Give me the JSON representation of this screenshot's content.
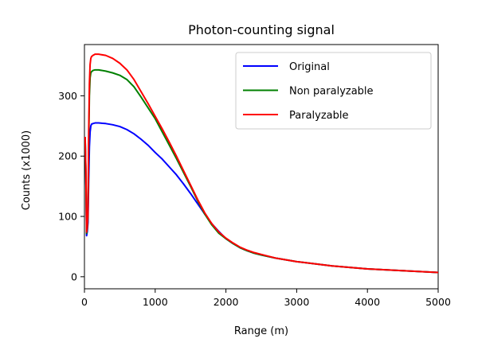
{
  "chart_data": {
    "type": "line",
    "title": "Photon-counting signal",
    "xlabel": "Range (m)",
    "ylabel": "Counts (x1000)",
    "xlim": [
      0,
      5000
    ],
    "ylim": [
      -20,
      385
    ],
    "xticks": [
      0,
      1000,
      2000,
      3000,
      4000,
      5000
    ],
    "yticks": [
      0,
      100,
      200,
      300
    ],
    "grid": false,
    "legend": "top-right",
    "series": [
      {
        "name": "Original",
        "color": "#0000ff",
        "x": [
          10,
          20,
          30,
          40,
          50,
          60,
          70,
          80,
          90,
          100,
          120,
          150,
          200,
          300,
          400,
          500,
          600,
          700,
          800,
          900,
          1000,
          1100,
          1200,
          1300,
          1400,
          1500,
          1600,
          1700,
          1800,
          1900,
          2000,
          2100,
          2200,
          2300,
          2400,
          2500,
          2700,
          3000,
          3500,
          4000,
          4500,
          5000
        ],
        "y": [
          230,
          170,
          68,
          75,
          90,
          160,
          215,
          240,
          250,
          253,
          254,
          255,
          255,
          254,
          252,
          249,
          244,
          237,
          228,
          218,
          206,
          195,
          182,
          169,
          154,
          138,
          121,
          104,
          88,
          75,
          63,
          55,
          48,
          43,
          39,
          36,
          31,
          25,
          18,
          13,
          10,
          7
        ]
      },
      {
        "name": "Non paralyzable",
        "color": "#008000",
        "x": [
          10,
          20,
          30,
          40,
          50,
          60,
          70,
          80,
          90,
          100,
          120,
          150,
          200,
          300,
          400,
          500,
          600,
          700,
          800,
          900,
          1000,
          1100,
          1200,
          1300,
          1400,
          1500,
          1600,
          1700,
          1800,
          1900,
          2000,
          2100,
          2200,
          2300,
          2400,
          2500,
          2700,
          3000,
          3500,
          4000,
          4500,
          5000
        ],
        "y": [
          230,
          175,
          72,
          80,
          100,
          220,
          300,
          330,
          338,
          340,
          342,
          343,
          343,
          341,
          338,
          334,
          327,
          315,
          298,
          280,
          262,
          240,
          218,
          196,
          173,
          150,
          126,
          104,
          86,
          72,
          63,
          55,
          48,
          43,
          39,
          36,
          31,
          25,
          18,
          13,
          10,
          7
        ]
      },
      {
        "name": "Paralyzable",
        "color": "#ff0000",
        "x": [
          10,
          20,
          30,
          40,
          50,
          60,
          70,
          80,
          90,
          100,
          120,
          150,
          200,
          300,
          400,
          500,
          600,
          700,
          800,
          900,
          1000,
          1100,
          1200,
          1300,
          1400,
          1500,
          1600,
          1700,
          1800,
          1900,
          2000,
          2100,
          2200,
          2300,
          2400,
          2500,
          2700,
          3000,
          3500,
          4000,
          4500,
          5000
        ],
        "y": [
          232,
          178,
          74,
          82,
          105,
          240,
          320,
          352,
          362,
          365,
          367,
          369,
          369,
          367,
          362,
          354,
          343,
          327,
          307,
          287,
          266,
          245,
          223,
          200,
          176,
          152,
          128,
          106,
          88,
          74,
          64,
          56,
          49,
          44,
          40,
          37,
          31,
          25,
          18,
          13,
          10,
          7
        ]
      }
    ]
  }
}
